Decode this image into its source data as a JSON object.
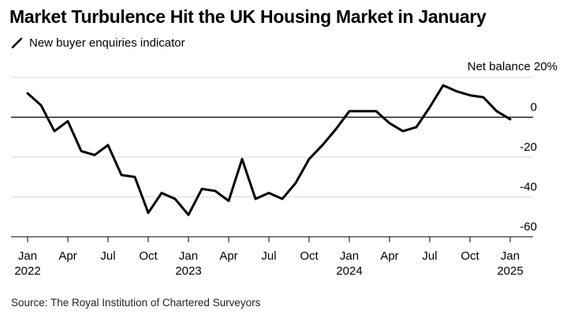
{
  "title": "Market Turbulence Hit the UK Housing Market in January",
  "legend": {
    "label": "New buyer enquiries indicator"
  },
  "source": "Source: The Royal Institution of Chartered Surveyors",
  "colors": {
    "line": "#000000",
    "grid": "#d9d9d9",
    "axis": "#000000",
    "text": "#000000"
  },
  "chart_data": {
    "type": "line",
    "title": "Market Turbulence Hit the UK Housing Market in January",
    "ylabel": "Net balance",
    "y_unit_label": "Net balance 20%",
    "ylim": [
      -60,
      20
    ],
    "yticks": [
      0,
      -20,
      -40,
      -60
    ],
    "grid": true,
    "legend_position": "top-left",
    "x_tick_labels": [
      {
        "month": "Jan",
        "year": "2022",
        "index": 0
      },
      {
        "month": "Apr",
        "year": "",
        "index": 3
      },
      {
        "month": "Jul",
        "year": "",
        "index": 6
      },
      {
        "month": "Oct",
        "year": "",
        "index": 9
      },
      {
        "month": "Jan",
        "year": "2023",
        "index": 12
      },
      {
        "month": "Apr",
        "year": "",
        "index": 15
      },
      {
        "month": "Jul",
        "year": "",
        "index": 18
      },
      {
        "month": "Oct",
        "year": "",
        "index": 21
      },
      {
        "month": "Jan",
        "year": "2024",
        "index": 24
      },
      {
        "month": "Apr",
        "year": "",
        "index": 27
      },
      {
        "month": "Jul",
        "year": "",
        "index": 30
      },
      {
        "month": "Oct",
        "year": "",
        "index": 33
      },
      {
        "month": "Jan",
        "year": "2025",
        "index": 36
      }
    ],
    "series": [
      {
        "name": "New buyer enquiries indicator",
        "x": [
          "2022-01",
          "2022-02",
          "2022-03",
          "2022-04",
          "2022-05",
          "2022-06",
          "2022-07",
          "2022-08",
          "2022-09",
          "2022-10",
          "2022-11",
          "2022-12",
          "2023-01",
          "2023-02",
          "2023-03",
          "2023-04",
          "2023-05",
          "2023-06",
          "2023-07",
          "2023-08",
          "2023-09",
          "2023-10",
          "2023-11",
          "2023-12",
          "2024-01",
          "2024-02",
          "2024-03",
          "2024-04",
          "2024-05",
          "2024-06",
          "2024-07",
          "2024-08",
          "2024-09",
          "2024-10",
          "2024-11",
          "2024-12",
          "2025-01"
        ],
        "values": [
          12,
          6,
          -7,
          -2,
          -17,
          -19,
          -14,
          -29,
          -30,
          -48,
          -38,
          -41,
          -49,
          -36,
          -37,
          -42,
          -21,
          -41,
          -38,
          -41,
          -33,
          -21,
          -14,
          -6,
          3,
          3,
          3,
          -3,
          -7,
          -5,
          5,
          16,
          13,
          11,
          10,
          3,
          -1
        ]
      }
    ]
  }
}
